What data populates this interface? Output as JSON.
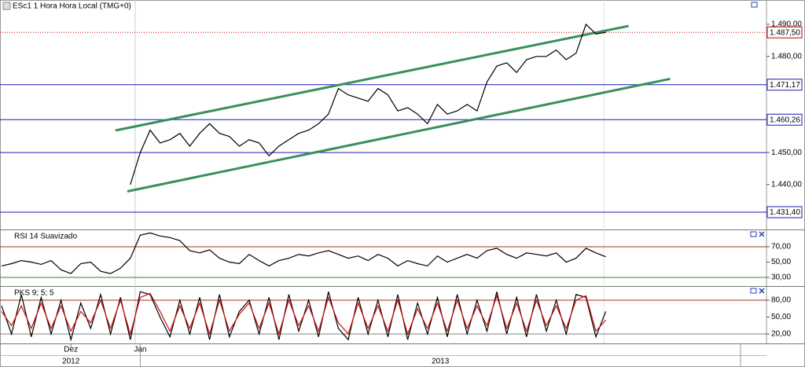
{
  "chart_data": [
    {
      "type": "line",
      "title": "ESc1 1 Hora Hora Local (TMG+0)",
      "categories": [
        null,
        null,
        null,
        null,
        null,
        null,
        null,
        "Dez",
        null,
        null,
        null,
        null,
        null,
        null,
        "Jan",
        null,
        null,
        null,
        null,
        null,
        null,
        null,
        null,
        null,
        null,
        null,
        null,
        null,
        null,
        null,
        null,
        null,
        null,
        null,
        null,
        null,
        null,
        null,
        null,
        null,
        null,
        null,
        null,
        null,
        null,
        null,
        null,
        null,
        null,
        null,
        null,
        null,
        null,
        null,
        null,
        null,
        null,
        null,
        null,
        null,
        null,
        null,
        null,
        null,
        null,
        null,
        null,
        null,
        null,
        null,
        null,
        null,
        null,
        null,
        null,
        null,
        null,
        null
      ],
      "years": [
        {
          "label": "2012",
          "start": 0,
          "end": 14
        },
        {
          "label": "2013",
          "start": 14,
          "end": 74.6
        }
      ],
      "values": [
        null,
        null,
        null,
        null,
        null,
        null,
        null,
        null,
        null,
        null,
        null,
        null,
        null,
        1440,
        1450,
        1457,
        1453,
        1454,
        1456,
        1452,
        1456,
        1459,
        1456,
        1455,
        1452,
        1454,
        1453,
        1449,
        1452,
        1454,
        1456,
        1457,
        1459,
        1462,
        1470,
        1468,
        1467,
        1466,
        1470,
        1468,
        1463,
        1464,
        1462,
        1459,
        1465,
        1462,
        1463,
        1465,
        1463,
        1472,
        1477,
        1478,
        1475,
        1479,
        1480,
        1480,
        1482,
        1479,
        1481,
        1490,
        1487,
        1487.5,
        null,
        null,
        null,
        null,
        null,
        null,
        null,
        null,
        null,
        null,
        null,
        null,
        null,
        null,
        null,
        null
      ],
      "color": "#000000",
      "ylim": [
        1426,
        1497.6
      ],
      "yticks": [
        {
          "value": 1490,
          "label": "1.490,00"
        },
        {
          "value": 1480,
          "label": "1.480,00"
        },
        {
          "value": 1450,
          "label": "1.450,00"
        },
        {
          "value": 1440,
          "label": "1.440,00"
        }
      ],
      "hlines": [
        {
          "value": 1487.5,
          "label": "1.487,50",
          "color": "#c00000",
          "style": "dotted"
        },
        {
          "value": 1471.17,
          "label": "1.471,17",
          "color": "#1a1ab8"
        },
        {
          "value": 1460.26,
          "label": "1.460,26",
          "color": "#1a1ab8"
        },
        {
          "value": 1450,
          "color": "#1a1ab8"
        },
        {
          "value": 1431.4,
          "label": "1.431,40",
          "color": "#1a1ab8"
        }
      ],
      "trendlines": [
        {
          "color": "#3a8f5c",
          "from": [
            11.5,
            1456.9
          ],
          "to": [
            63.3,
            1489.5
          ]
        },
        {
          "color": "#3a8f5c",
          "from": [
            12.7,
            1437.9
          ],
          "to": [
            67.5,
            1473.0
          ]
        }
      ]
    },
    {
      "type": "line",
      "title": "RSI 14 Suavizado",
      "values": [
        45,
        48,
        52,
        50,
        47,
        52,
        40,
        35,
        48,
        50,
        38,
        35,
        42,
        55,
        85,
        88,
        84,
        82,
        78,
        65,
        62,
        66,
        55,
        50,
        48,
        60,
        52,
        45,
        52,
        55,
        60,
        58,
        62,
        65,
        60,
        55,
        58,
        52,
        60,
        55,
        45,
        52,
        48,
        45,
        58,
        50,
        55,
        60,
        55,
        65,
        68,
        60,
        55,
        62,
        60,
        58,
        62,
        50,
        55,
        68,
        62,
        57,
        null,
        null,
        null,
        null,
        null,
        null,
        null,
        null,
        null,
        null,
        null,
        null,
        null,
        null,
        null,
        null
      ],
      "color": "#000000",
      "ylim": [
        20.8,
        91.5
      ],
      "yticks": [
        {
          "value": 70,
          "label": "70,00"
        },
        {
          "value": 50,
          "label": "50,00"
        },
        {
          "value": 30,
          "label": "30,00"
        }
      ],
      "hlines": [
        {
          "value": 70,
          "color": "#a03020"
        },
        {
          "value": 30,
          "color": "#2a8a2a"
        }
      ]
    },
    {
      "type": "line",
      "title": "PKS 9; 5; 5",
      "series": [
        {
          "color": "#000000",
          "values": [
            70,
            20,
            90,
            15,
            85,
            20,
            80,
            10,
            75,
            30,
            90,
            20,
            85,
            10,
            95,
            90,
            50,
            15,
            80,
            20,
            85,
            10,
            90,
            15,
            60,
            80,
            20,
            85,
            10,
            90,
            25,
            80,
            15,
            95,
            30,
            10,
            85,
            20,
            80,
            15,
            90,
            10,
            75,
            20,
            85,
            15,
            90,
            20,
            80,
            25,
            95,
            20,
            85,
            15,
            90,
            25,
            80,
            20,
            90,
            85,
            15,
            60,
            null,
            null,
            null,
            null,
            null,
            null,
            null,
            null,
            null,
            null,
            null,
            null,
            null,
            null,
            null,
            null
          ]
        },
        {
          "color": "#d01010",
          "values": [
            60,
            35,
            70,
            30,
            75,
            30,
            70,
            25,
            60,
            40,
            80,
            30,
            80,
            20,
            85,
            92,
            60,
            25,
            70,
            30,
            75,
            20,
            80,
            25,
            55,
            75,
            30,
            75,
            20,
            80,
            35,
            70,
            25,
            85,
            40,
            20,
            75,
            30,
            70,
            25,
            80,
            20,
            65,
            30,
            75,
            25,
            80,
            30,
            70,
            35,
            88,
            30,
            75,
            25,
            80,
            35,
            70,
            30,
            80,
            88,
            25,
            45,
            null,
            null,
            null,
            null,
            null,
            null,
            null,
            null,
            null,
            null,
            null,
            null,
            null,
            null,
            null,
            null
          ]
        }
      ],
      "ylim": [
        3.3,
        103.7
      ],
      "yticks": [
        {
          "value": 80,
          "label": "80,00"
        },
        {
          "value": 50,
          "label": "50,00"
        },
        {
          "value": 20,
          "label": "20,00"
        }
      ],
      "hlines": [
        {
          "value": 80,
          "color": "#a03020"
        },
        {
          "value": 20,
          "color": "#808080"
        }
      ]
    }
  ]
}
